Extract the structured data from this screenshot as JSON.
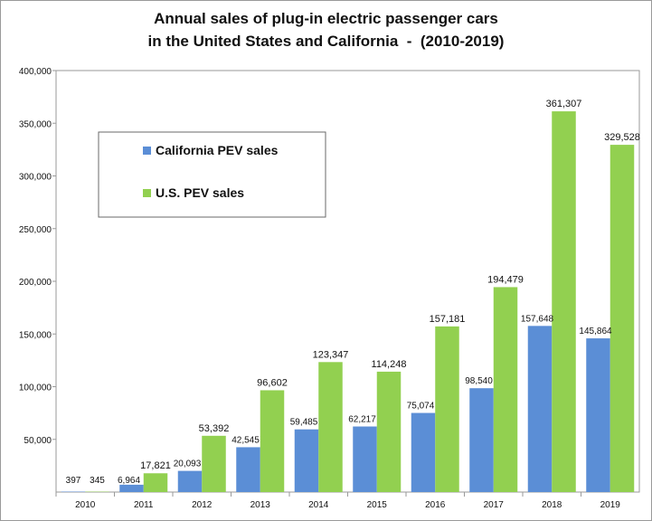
{
  "chart_data": {
    "type": "bar",
    "title_line1": "Annual sales of plug-in electric passenger cars",
    "title_line2": "in the United States and California  -  (2010-2019)",
    "categories": [
      "2010",
      "2011",
      "2012",
      "2013",
      "2014",
      "2015",
      "2016",
      "2017",
      "2018",
      "2019"
    ],
    "series": [
      {
        "name": "California PEV sales",
        "color": "#5b8ed6",
        "values": [
          397,
          6964,
          20093,
          42545,
          59485,
          62217,
          75074,
          98540,
          157648,
          145864
        ],
        "labels": [
          "397",
          "6,964",
          "20,093",
          "42,545",
          "59,485",
          "62,217",
          "75,074",
          "98,540",
          "157,648",
          "145,864"
        ]
      },
      {
        "name": "U.S. PEV sales",
        "color": "#92d050",
        "values": [
          345,
          17821,
          53392,
          96602,
          123347,
          114248,
          157181,
          194479,
          361307,
          329528
        ],
        "labels": [
          "345",
          "17,821",
          "53,392",
          "96,602",
          "123,347",
          "114,248",
          "157,181",
          "194,479",
          "361,307",
          "329,528"
        ]
      }
    ],
    "ylim": [
      0,
      400000
    ],
    "yticks": [
      50000,
      100000,
      150000,
      200000,
      250000,
      300000,
      350000,
      400000
    ],
    "ytick_labels": [
      "50,000",
      "100,000",
      "150,000",
      "200,000",
      "250,000",
      "300,000",
      "350,000",
      "400,000"
    ],
    "grid": false,
    "legend_position": "upper-left"
  }
}
